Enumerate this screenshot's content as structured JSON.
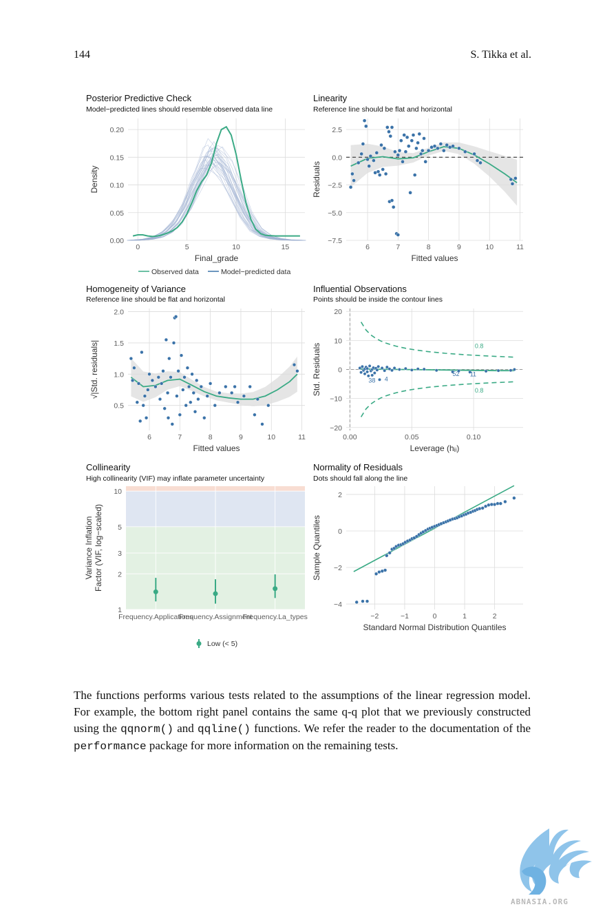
{
  "header": {
    "page_number": "144",
    "authors": "S. Tikka et al."
  },
  "panels": {
    "ppc": {
      "title": "Posterior Predictive Check",
      "subtitle": "Model−predicted lines should resemble observed data line"
    },
    "linearity": {
      "title": "Linearity",
      "subtitle": "Reference line should be flat and horizontal"
    },
    "homogeneity": {
      "title": "Homogeneity of Variance",
      "subtitle": "Reference line should be flat and horizontal"
    },
    "influential": {
      "title": "Influential Observations",
      "subtitle": "Points should be inside the contour lines"
    },
    "collinearity": {
      "title": "Collinearity",
      "subtitle": "High collinearity (VIF) may inflate parameter uncertainty"
    },
    "normality": {
      "title": "Normality of Residuals",
      "subtitle": "Dots should fall along the line"
    }
  },
  "chart_data": [
    {
      "type": "line",
      "xlabel": "Final_grade",
      "ylabel": "Density",
      "xlim": [
        -1,
        17
      ],
      "ylim": [
        0,
        0.22
      ],
      "xticks": [
        "0",
        "5",
        "10",
        "15"
      ],
      "yticks": [
        "0.00",
        "0.05",
        "0.10",
        "0.15",
        "0.20"
      ],
      "legend": [
        "Observed data",
        "Model−predicted data"
      ],
      "series": [
        {
          "name": "Observed data",
          "x": [
            -0.5,
            0,
            0.5,
            1,
            1.5,
            2,
            2.5,
            3,
            3.5,
            4,
            4.5,
            5,
            5.5,
            6,
            6.5,
            7,
            7.5,
            8,
            8.5,
            9,
            9.5,
            10,
            10.5,
            11,
            11.5,
            12,
            12.5,
            13,
            14,
            15,
            16.5
          ],
          "y": [
            0.008,
            0.01,
            0.01,
            0.008,
            0.007,
            0.008,
            0.01,
            0.013,
            0.017,
            0.023,
            0.033,
            0.048,
            0.068,
            0.09,
            0.106,
            0.118,
            0.14,
            0.175,
            0.2,
            0.205,
            0.19,
            0.155,
            0.11,
            0.068,
            0.038,
            0.02,
            0.012,
            0.009,
            0.008,
            0.008,
            0.008
          ]
        },
        {
          "name": "Model−predicted data",
          "x": [
            -0.5,
            1,
            2,
            3,
            4,
            5,
            6,
            7,
            7.5,
            8,
            9,
            10,
            11,
            12,
            13,
            14,
            15,
            16.5
          ],
          "y": [
            0,
            0.002,
            0.006,
            0.015,
            0.032,
            0.062,
            0.105,
            0.145,
            0.155,
            0.15,
            0.125,
            0.085,
            0.046,
            0.02,
            0.008,
            0.003,
            0.001,
            0
          ]
        }
      ]
    },
    {
      "type": "scatter",
      "xlabel": "Fitted values",
      "ylabel": "Residuals",
      "xlim": [
        5.3,
        11.1
      ],
      "ylim": [
        -7.5,
        3.5
      ],
      "xticks": [
        "6",
        "7",
        "8",
        "9",
        "10",
        "11"
      ],
      "yticks": [
        "−7.5",
        "−5.0",
        "−2.5",
        "0.0",
        "2.5"
      ],
      "reference_line": 0,
      "points": [
        [
          5.45,
          -2.7
        ],
        [
          5.55,
          -2.1
        ],
        [
          5.5,
          -1.5
        ],
        [
          5.7,
          -0.5
        ],
        [
          5.8,
          0.3
        ],
        [
          5.85,
          1.2
        ],
        [
          5.9,
          3.3
        ],
        [
          5.95,
          2.8
        ],
        [
          6.0,
          -0.2
        ],
        [
          6.05,
          -0.8
        ],
        [
          6.1,
          0.1
        ],
        [
          6.2,
          -0.3
        ],
        [
          6.25,
          -1.4
        ],
        [
          6.3,
          0.4
        ],
        [
          6.35,
          -1.3
        ],
        [
          6.4,
          -1.6
        ],
        [
          6.45,
          1.1
        ],
        [
          6.5,
          -1.1
        ],
        [
          6.55,
          0.8
        ],
        [
          6.6,
          -1.5
        ],
        [
          6.65,
          2.7
        ],
        [
          6.7,
          2.3
        ],
        [
          6.75,
          1.9
        ],
        [
          6.8,
          2.7
        ],
        [
          6.72,
          -4.0
        ],
        [
          6.8,
          -3.9
        ],
        [
          6.85,
          -4.5
        ],
        [
          6.9,
          0.5
        ],
        [
          6.95,
          -6.9
        ],
        [
          7.0,
          -7.0
        ],
        [
          7.0,
          0.2
        ],
        [
          7.05,
          0.6
        ],
        [
          7.1,
          1.5
        ],
        [
          7.15,
          -0.4
        ],
        [
          7.2,
          2.0
        ],
        [
          7.25,
          0.5
        ],
        [
          7.3,
          1.8
        ],
        [
          7.35,
          1.0
        ],
        [
          7.4,
          -3.2
        ],
        [
          7.45,
          1.5
        ],
        [
          7.5,
          2.0
        ],
        [
          7.55,
          -1.6
        ],
        [
          7.6,
          0.8
        ],
        [
          7.65,
          1.3
        ],
        [
          7.7,
          2.1
        ],
        [
          7.75,
          0.3
        ],
        [
          7.8,
          0.6
        ],
        [
          7.85,
          1.7
        ],
        [
          7.9,
          -0.4
        ],
        [
          8.0,
          0.6
        ],
        [
          8.1,
          0.9
        ],
        [
          8.2,
          1.0
        ],
        [
          8.3,
          0.8
        ],
        [
          8.4,
          1.2
        ],
        [
          8.5,
          0.6
        ],
        [
          8.6,
          1.1
        ],
        [
          8.7,
          0.9
        ],
        [
          8.8,
          1.0
        ],
        [
          9.0,
          0.8
        ],
        [
          9.2,
          0.5
        ],
        [
          9.5,
          0.3
        ],
        [
          9.6,
          -0.3
        ],
        [
          9.7,
          -0.5
        ],
        [
          10.7,
          -2.0
        ],
        [
          10.75,
          -2.4
        ],
        [
          10.85,
          -1.9
        ]
      ],
      "smooth": {
        "x": [
          5.45,
          6.0,
          6.5,
          7.0,
          7.5,
          8.0,
          8.5,
          9.0,
          9.5,
          10.0,
          10.5,
          10.9
        ],
        "y": [
          -0.8,
          -0.1,
          0.05,
          -0.15,
          -0.05,
          0.5,
          0.95,
          0.8,
          0.2,
          -0.6,
          -1.5,
          -2.3
        ]
      }
    },
    {
      "type": "scatter",
      "xlabel": "Fitted values",
      "ylabel": "√|Std. residuals|",
      "xlim": [
        5.3,
        11.1
      ],
      "ylim": [
        0.1,
        2.05
      ],
      "xticks": [
        "6",
        "7",
        "8",
        "9",
        "10",
        "11"
      ],
      "yticks": [
        "0.5",
        "1.0",
        "1.5",
        "2.0"
      ],
      "points": [
        [
          5.4,
          1.25
        ],
        [
          5.45,
          0.9
        ],
        [
          5.5,
          1.1
        ],
        [
          5.6,
          0.55
        ],
        [
          5.65,
          0.85
        ],
        [
          5.7,
          0.25
        ],
        [
          5.75,
          1.35
        ],
        [
          5.8,
          0.5
        ],
        [
          5.85,
          0.65
        ],
        [
          5.9,
          0.3
        ],
        [
          5.95,
          0.75
        ],
        [
          6.0,
          1.0
        ],
        [
          6.1,
          0.9
        ],
        [
          6.2,
          0.8
        ],
        [
          6.3,
          0.95
        ],
        [
          6.35,
          0.6
        ],
        [
          6.4,
          0.85
        ],
        [
          6.45,
          1.05
        ],
        [
          6.5,
          0.45
        ],
        [
          6.55,
          1.55
        ],
        [
          6.6,
          0.7
        ],
        [
          6.62,
          0.3
        ],
        [
          6.65,
          1.25
        ],
        [
          6.7,
          0.95
        ],
        [
          6.75,
          0.2
        ],
        [
          6.8,
          1.5
        ],
        [
          6.83,
          1.9
        ],
        [
          6.87,
          1.92
        ],
        [
          6.9,
          0.65
        ],
        [
          6.95,
          1.05
        ],
        [
          7.0,
          0.35
        ],
        [
          7.05,
          1.3
        ],
        [
          7.1,
          0.75
        ],
        [
          7.15,
          0.95
        ],
        [
          7.2,
          0.5
        ],
        [
          7.25,
          1.1
        ],
        [
          7.3,
          0.8
        ],
        [
          7.35,
          0.55
        ],
        [
          7.4,
          1.0
        ],
        [
          7.45,
          0.7
        ],
        [
          7.5,
          0.4
        ],
        [
          7.55,
          0.9
        ],
        [
          7.6,
          0.6
        ],
        [
          7.7,
          0.8
        ],
        [
          7.8,
          0.3
        ],
        [
          7.9,
          0.65
        ],
        [
          8.0,
          0.85
        ],
        [
          8.15,
          0.5
        ],
        [
          8.3,
          0.7
        ],
        [
          8.5,
          0.8
        ],
        [
          8.7,
          0.7
        ],
        [
          8.8,
          0.8
        ],
        [
          8.9,
          0.55
        ],
        [
          9.1,
          0.65
        ],
        [
          9.3,
          0.8
        ],
        [
          9.45,
          0.35
        ],
        [
          9.55,
          0.6
        ],
        [
          9.7,
          0.2
        ],
        [
          9.9,
          0.5
        ],
        [
          10.75,
          1.15
        ],
        [
          10.85,
          1.05
        ]
      ],
      "smooth": {
        "x": [
          5.4,
          5.8,
          6.2,
          6.6,
          7.0,
          7.4,
          7.8,
          8.2,
          8.6,
          9.0,
          9.4,
          9.8,
          10.2,
          10.6,
          10.85
        ],
        "y": [
          0.95,
          0.8,
          0.82,
          0.9,
          0.92,
          0.82,
          0.72,
          0.65,
          0.62,
          0.6,
          0.6,
          0.65,
          0.75,
          0.88,
          1.0
        ]
      }
    },
    {
      "type": "scatter",
      "xlabel": "Leverage (hᵢᵢ)",
      "ylabel": "Std. Residuals",
      "xlim": [
        -0.003,
        0.14
      ],
      "ylim": [
        -21,
        21
      ],
      "xticks": [
        "0.00",
        "0.05",
        "0.10"
      ],
      "yticks": [
        "−20",
        "−10",
        "0",
        "10",
        "20"
      ],
      "contour_label": "0.8",
      "labeled_points": [
        {
          "label": "38",
          "x": 0.015,
          "y": -4.5
        },
        {
          "label": "4",
          "x": 0.028,
          "y": -4.0
        },
        {
          "label": "52",
          "x": 0.083,
          "y": -2.2
        },
        {
          "label": "11",
          "x": 0.097,
          "y": -2.4
        }
      ],
      "points": [
        [
          0.008,
          0.5
        ],
        [
          0.009,
          -1.0
        ],
        [
          0.01,
          1.0
        ],
        [
          0.011,
          -0.3
        ],
        [
          0.012,
          0.2
        ],
        [
          0.012,
          -1.5
        ],
        [
          0.013,
          0.8
        ],
        [
          0.014,
          -0.8
        ],
        [
          0.014,
          0.3
        ],
        [
          0.015,
          -2.2
        ],
        [
          0.016,
          1.2
        ],
        [
          0.017,
          -0.5
        ],
        [
          0.018,
          0.0
        ],
        [
          0.018,
          -2.0
        ],
        [
          0.019,
          0.6
        ],
        [
          0.02,
          -1.2
        ],
        [
          0.021,
          0.4
        ],
        [
          0.022,
          -0.2
        ],
        [
          0.023,
          1.0
        ],
        [
          0.024,
          -3.5
        ],
        [
          0.026,
          0.5
        ],
        [
          0.028,
          -0.4
        ],
        [
          0.03,
          0.8
        ],
        [
          0.032,
          0.2
        ],
        [
          0.034,
          -0.3
        ],
        [
          0.036,
          0.5
        ],
        [
          0.04,
          0.0
        ],
        [
          0.045,
          0.3
        ],
        [
          0.05,
          -0.2
        ],
        [
          0.055,
          0.2
        ],
        [
          0.06,
          0.1
        ],
        [
          0.07,
          -0.3
        ],
        [
          0.083,
          -0.8
        ],
        [
          0.088,
          -0.5
        ],
        [
          0.097,
          -0.9
        ],
        [
          0.11,
          -0.6
        ],
        [
          0.12,
          -0.4
        ],
        [
          0.13,
          -0.3
        ],
        [
          0.133,
          0.0
        ]
      ],
      "smooth": {
        "x": [
          0.008,
          0.02,
          0.04,
          0.06,
          0.08,
          0.1,
          0.12,
          0.133
        ],
        "y": [
          0.2,
          0.1,
          0.0,
          -0.1,
          -0.2,
          -0.3,
          -0.4,
          -0.4
        ]
      }
    },
    {
      "type": "scatter",
      "xlabel": "",
      "ylabel": "Variance Inflation Factor (VIF, log−scaled)",
      "y_scale": "log",
      "ylim": [
        1,
        11
      ],
      "yticks": [
        "1",
        "2",
        "3",
        "5",
        "10"
      ],
      "categories": [
        "Frequency.Applications",
        "Frequency.Assignment",
        "Frequency.La_types"
      ],
      "values": [
        1.41,
        1.36,
        1.5
      ],
      "ci_low": [
        1.17,
        1.12,
        1.25
      ],
      "ci_high": [
        1.85,
        1.8,
        1.98
      ],
      "bands": [
        {
          "from": 1,
          "to": 5,
          "color": "#e3f1e3"
        },
        {
          "from": 5,
          "to": 10,
          "color": "#dfe6f2"
        },
        {
          "from": 10,
          "to": 11,
          "color": "#f8ddd2"
        }
      ],
      "legend": [
        "Low (< 5)"
      ]
    },
    {
      "type": "scatter",
      "xlabel": "Standard Normal Distribution Quantiles",
      "ylabel": "Sample Quantiles",
      "xlim": [
        -2.95,
        2.95
      ],
      "ylim": [
        -4.3,
        2.45
      ],
      "xticks": [
        "−2",
        "−1",
        "0",
        "1",
        "2"
      ],
      "yticks": [
        "−4",
        "−2",
        "0",
        "2"
      ],
      "reference_line": {
        "slope": 0.88,
        "intercept": 0.15
      },
      "points": [
        [
          -2.6,
          -3.9
        ],
        [
          -2.4,
          -3.85
        ],
        [
          -2.25,
          -3.85
        ],
        [
          -1.95,
          -2.35
        ],
        [
          -1.85,
          -2.25
        ],
        [
          -1.75,
          -2.2
        ],
        [
          -1.65,
          -2.15
        ],
        [
          -1.6,
          -1.35
        ],
        [
          -1.5,
          -1.2
        ],
        [
          -1.42,
          -1.0
        ],
        [
          -1.35,
          -0.95
        ],
        [
          -1.28,
          -0.85
        ],
        [
          -1.2,
          -0.78
        ],
        [
          -1.12,
          -0.75
        ],
        [
          -1.05,
          -0.7
        ],
        [
          -0.98,
          -0.62
        ],
        [
          -0.9,
          -0.55
        ],
        [
          -0.82,
          -0.5
        ],
        [
          -0.75,
          -0.42
        ],
        [
          -0.68,
          -0.38
        ],
        [
          -0.6,
          -0.3
        ],
        [
          -0.52,
          -0.2
        ],
        [
          -0.45,
          -0.12
        ],
        [
          -0.38,
          -0.05
        ],
        [
          -0.3,
          0.02
        ],
        [
          -0.22,
          0.1
        ],
        [
          -0.15,
          0.15
        ],
        [
          -0.08,
          0.2
        ],
        [
          0.0,
          0.25
        ],
        [
          0.08,
          0.3
        ],
        [
          0.15,
          0.35
        ],
        [
          0.22,
          0.4
        ],
        [
          0.3,
          0.45
        ],
        [
          0.38,
          0.5
        ],
        [
          0.45,
          0.55
        ],
        [
          0.52,
          0.6
        ],
        [
          0.6,
          0.65
        ],
        [
          0.68,
          0.68
        ],
        [
          0.75,
          0.72
        ],
        [
          0.82,
          0.78
        ],
        [
          0.9,
          0.82
        ],
        [
          0.98,
          0.88
        ],
        [
          1.05,
          0.92
        ],
        [
          1.12,
          0.98
        ],
        [
          1.2,
          1.02
        ],
        [
          1.28,
          1.08
        ],
        [
          1.35,
          1.12
        ],
        [
          1.42,
          1.18
        ],
        [
          1.5,
          1.22
        ],
        [
          1.6,
          1.25
        ],
        [
          1.7,
          1.35
        ],
        [
          1.8,
          1.42
        ],
        [
          1.9,
          1.45
        ],
        [
          2.0,
          1.45
        ],
        [
          2.1,
          1.5
        ],
        [
          2.2,
          1.5
        ],
        [
          2.35,
          1.6
        ],
        [
          2.65,
          1.8
        ]
      ]
    }
  ],
  "paragraph": {
    "t1": "The functions performs various tests related to the assumptions of the linear regression model. For example, the bottom right panel contains the same q-q plot that we previously constructed using the ",
    "c1": "qqnorm()",
    "t2": " and ",
    "c2": "qqline()",
    "t3": " functions. We refer the reader to the documentation of the ",
    "c3": "performance",
    "t4": " package for more information on the remaining tests."
  },
  "watermark": {
    "text": "ABNASIA.ORG"
  },
  "colors": {
    "green": "#3aaa85",
    "blue": "#3a72a8",
    "ppc_lines": "#9fb0d2",
    "band": "#dcdcdc"
  }
}
